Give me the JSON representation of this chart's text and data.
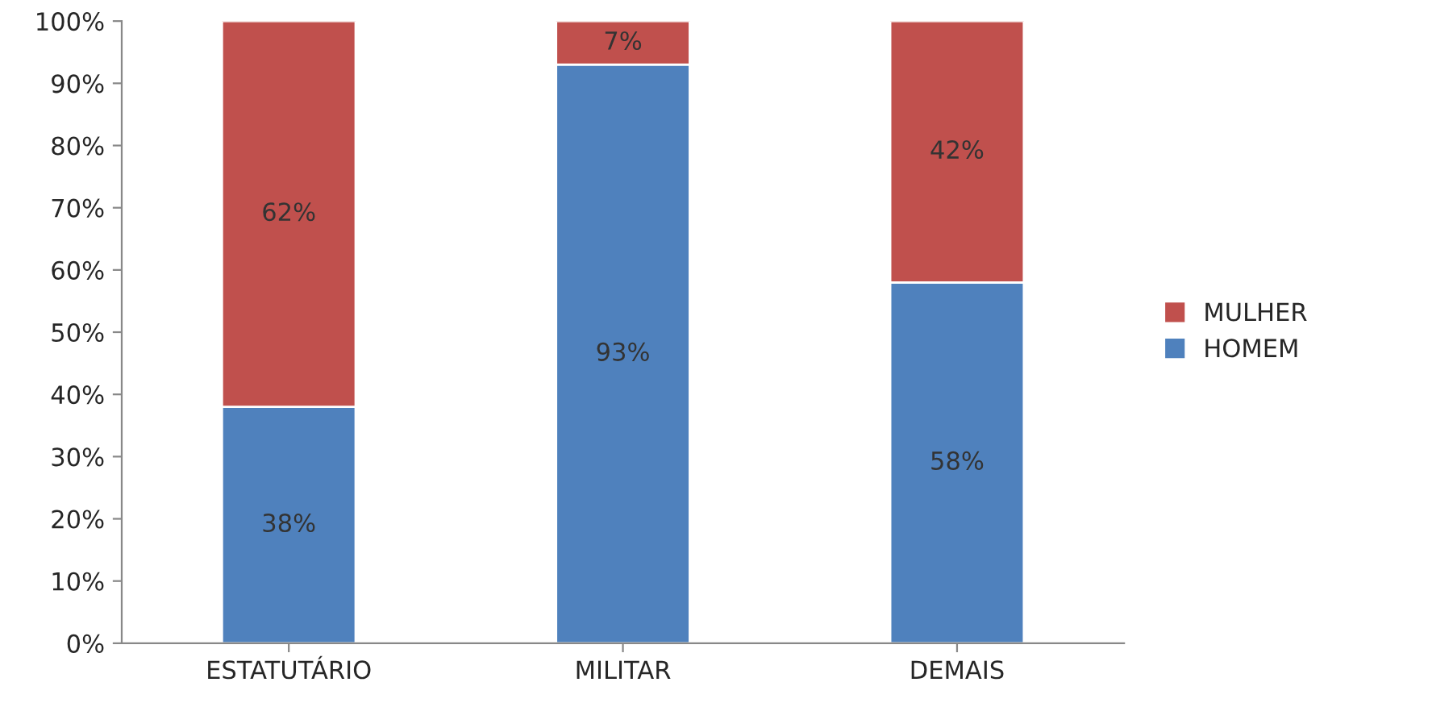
{
  "chart_data": {
    "type": "bar",
    "stacked": true,
    "categories": [
      "ESTATUTÁRIO",
      "MILITAR",
      "DEMAIS"
    ],
    "series": [
      {
        "name": "HOMEM",
        "color": "#4f81bd",
        "values": [
          38,
          93,
          58
        ],
        "value_labels": [
          "38%",
          "93%",
          "58%"
        ]
      },
      {
        "name": "MULHER",
        "color": "#c0504d",
        "values": [
          62,
          7,
          42
        ],
        "value_labels": [
          "62%",
          "7%",
          "42%"
        ]
      }
    ],
    "ylim": [
      0,
      100
    ],
    "yticks": [
      {
        "value": 0,
        "label": "0%"
      },
      {
        "value": 10,
        "label": "10%"
      },
      {
        "value": 20,
        "label": "20%"
      },
      {
        "value": 30,
        "label": "30%"
      },
      {
        "value": 40,
        "label": "40%"
      },
      {
        "value": 50,
        "label": "50%"
      },
      {
        "value": 60,
        "label": "60%"
      },
      {
        "value": 70,
        "label": "70%"
      },
      {
        "value": 80,
        "label": "80%"
      },
      {
        "value": 90,
        "label": "90%"
      },
      {
        "value": 100,
        "label": "100%"
      }
    ],
    "legend": "right",
    "grid": false
  }
}
